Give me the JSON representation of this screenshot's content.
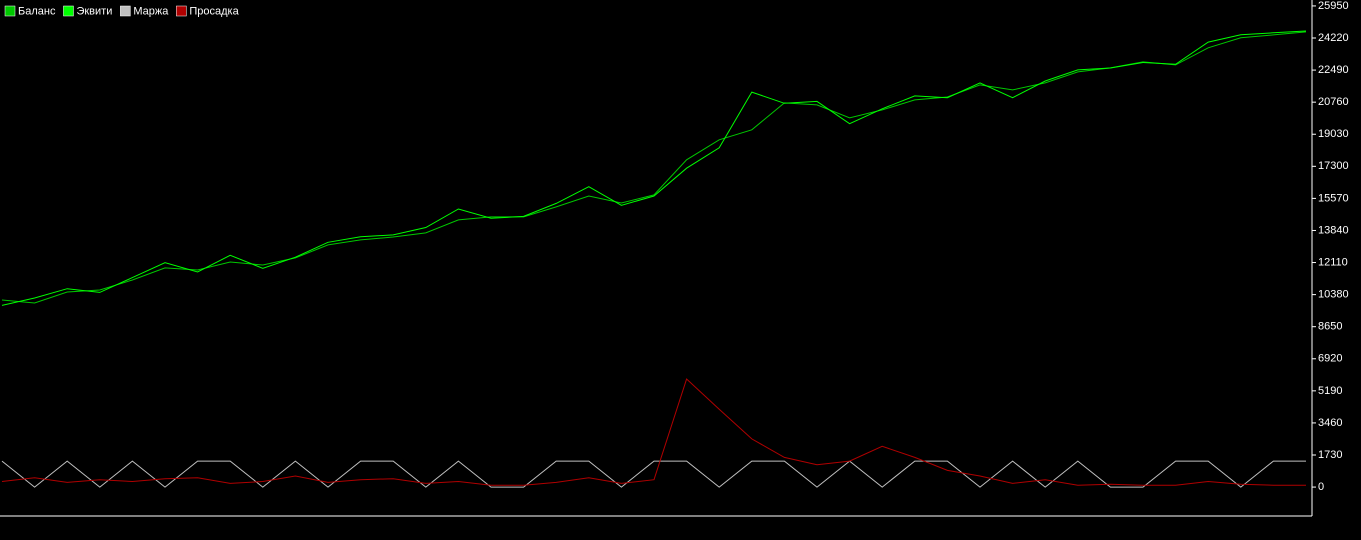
{
  "chart_data": {
    "type": "line",
    "ylim": [
      -1560,
      26270
    ],
    "yticks": [
      0,
      1730,
      3460,
      5190,
      6920,
      8650,
      10380,
      12110,
      13840,
      15570,
      17300,
      19030,
      20760,
      22490,
      24220,
      25950
    ],
    "series": [
      {
        "name": "Баланс",
        "color": "#00c800",
        "values": [
          10090,
          9930,
          10520,
          10630,
          11170,
          11820,
          11710,
          12140,
          11980,
          12360,
          13060,
          13330,
          13490,
          13710,
          14410,
          14570,
          14570,
          15110,
          15700,
          15320,
          15760,
          17650,
          18730,
          19270,
          20720,
          20610,
          19910,
          20340,
          20880,
          21040,
          21690,
          21420,
          21800,
          22390,
          22610,
          22930,
          22770,
          23690,
          24230,
          24390,
          24550
        ]
      },
      {
        "name": "Эквити",
        "color": "#00ff00",
        "values": [
          9800,
          10200,
          10700,
          10500,
          11300,
          12100,
          11600,
          12500,
          11800,
          12400,
          13200,
          13500,
          13600,
          14000,
          15000,
          14500,
          14600,
          15300,
          16200,
          15200,
          15700,
          17200,
          18300,
          21300,
          20700,
          20800,
          19600,
          20400,
          21100,
          21000,
          21800,
          21000,
          21900,
          22500,
          22600,
          22900,
          22800,
          24000,
          24400,
          24500,
          24600
        ]
      },
      {
        "name": "Маржа",
        "color": "#c0c0c0",
        "values": [
          1400,
          0,
          1400,
          0,
          1400,
          0,
          1400,
          1400,
          0,
          1400,
          0,
          1400,
          1400,
          0,
          1400,
          0,
          0,
          1400,
          1400,
          0,
          1400,
          1400,
          0,
          1400,
          1400,
          0,
          1400,
          0,
          1400,
          1400,
          0,
          1400,
          0,
          1400,
          0,
          0,
          1400,
          1400,
          0,
          1400,
          1400
        ]
      },
      {
        "name": "Просадка",
        "color": "#b00000",
        "values": [
          300,
          500,
          250,
          400,
          300,
          450,
          500,
          200,
          300,
          600,
          250,
          400,
          450,
          200,
          300,
          100,
          100,
          250,
          500,
          200,
          400,
          5830,
          4200,
          2600,
          1600,
          1200,
          1400,
          2200,
          1600,
          900,
          600,
          200,
          400,
          100,
          150,
          100,
          100,
          300,
          150,
          100,
          100
        ]
      }
    ]
  }
}
